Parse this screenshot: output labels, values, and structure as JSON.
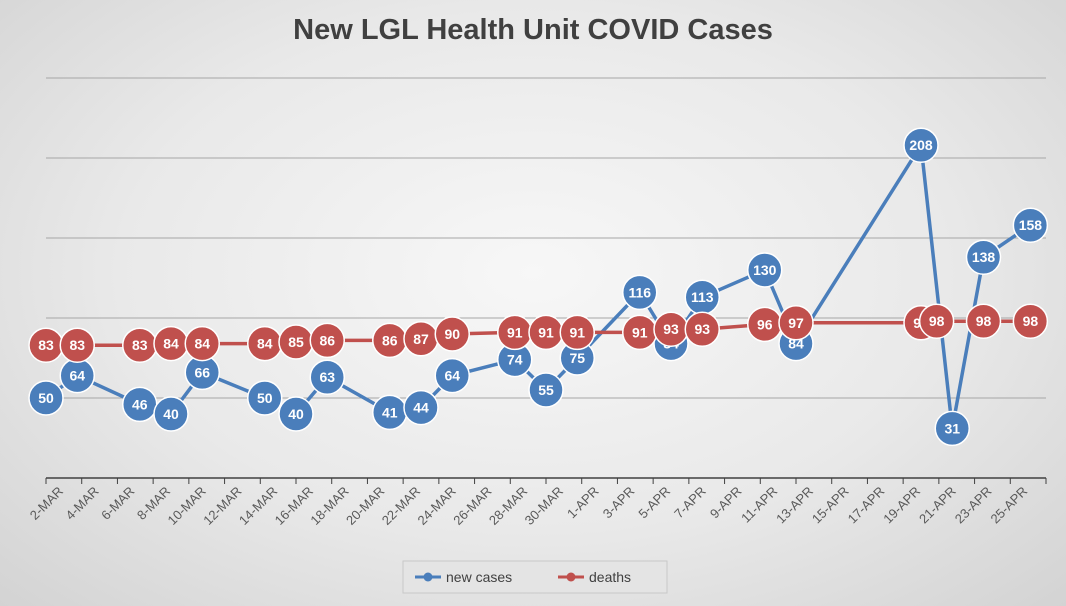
{
  "chart_data": {
    "type": "line",
    "title": "New LGL Health Unit COVID Cases",
    "xlabel": "",
    "ylabel": "",
    "ylim": [
      0,
      250
    ],
    "grid": true,
    "legend_position": "bottom",
    "x_tick_labels": [
      "2-MAR",
      "4-MAR",
      "6-MAR",
      "8-MAR",
      "10-MAR",
      "12-MAR",
      "14-MAR",
      "16-MAR",
      "18-MAR",
      "20-MAR",
      "22-MAR",
      "24-MAR",
      "26-MAR",
      "28-MAR",
      "30-MAR",
      "1-APR",
      "3-APR",
      "5-APR",
      "7-APR",
      "9-APR",
      "11-APR",
      "13-APR",
      "15-APR",
      "17-APR",
      "19-APR",
      "21-APR",
      "23-APR",
      "25-APR"
    ],
    "series": [
      {
        "name": "new cases",
        "color": "#4a7ebb",
        "points": [
          {
            "x": 2,
            "y": 50
          },
          {
            "x": 3,
            "y": 64
          },
          {
            "x": 5,
            "y": 46
          },
          {
            "x": 6,
            "y": 40
          },
          {
            "x": 7,
            "y": 66
          },
          {
            "x": 9,
            "y": 50
          },
          {
            "x": 10,
            "y": 40
          },
          {
            "x": 11,
            "y": 63
          },
          {
            "x": 13,
            "y": 41
          },
          {
            "x": 14,
            "y": 44
          },
          {
            "x": 15,
            "y": 64
          },
          {
            "x": 17,
            "y": 74
          },
          {
            "x": 18,
            "y": 55
          },
          {
            "x": 19,
            "y": 75
          },
          {
            "x": 21,
            "y": 116
          },
          {
            "x": 22,
            "y": 84
          },
          {
            "x": 23,
            "y": 113
          },
          {
            "x": 25,
            "y": 130
          },
          {
            "x": 26,
            "y": 84
          },
          {
            "x": 30,
            "y": 208
          },
          {
            "x": 31,
            "y": 31
          },
          {
            "x": 32,
            "y": 138
          },
          {
            "x": 33.5,
            "y": 158
          }
        ]
      },
      {
        "name": "deaths",
        "color": "#c0504d",
        "points": [
          {
            "x": 2,
            "y": 83
          },
          {
            "x": 3,
            "y": 83
          },
          {
            "x": 5,
            "y": 83
          },
          {
            "x": 6,
            "y": 84
          },
          {
            "x": 7,
            "y": 84
          },
          {
            "x": 9,
            "y": 84
          },
          {
            "x": 10,
            "y": 85
          },
          {
            "x": 11,
            "y": 86
          },
          {
            "x": 13,
            "y": 86
          },
          {
            "x": 14,
            "y": 87
          },
          {
            "x": 15,
            "y": 90
          },
          {
            "x": 17,
            "y": 91
          },
          {
            "x": 18,
            "y": 91
          },
          {
            "x": 19,
            "y": 91
          },
          {
            "x": 21,
            "y": 91
          },
          {
            "x": 22,
            "y": 93
          },
          {
            "x": 23,
            "y": 93
          },
          {
            "x": 25,
            "y": 96
          },
          {
            "x": 26,
            "y": 97
          },
          {
            "x": 30,
            "y": 97
          },
          {
            "x": 30.5,
            "y": 98
          },
          {
            "x": 32,
            "y": 98
          },
          {
            "x": 33.5,
            "y": 98
          }
        ]
      }
    ]
  }
}
